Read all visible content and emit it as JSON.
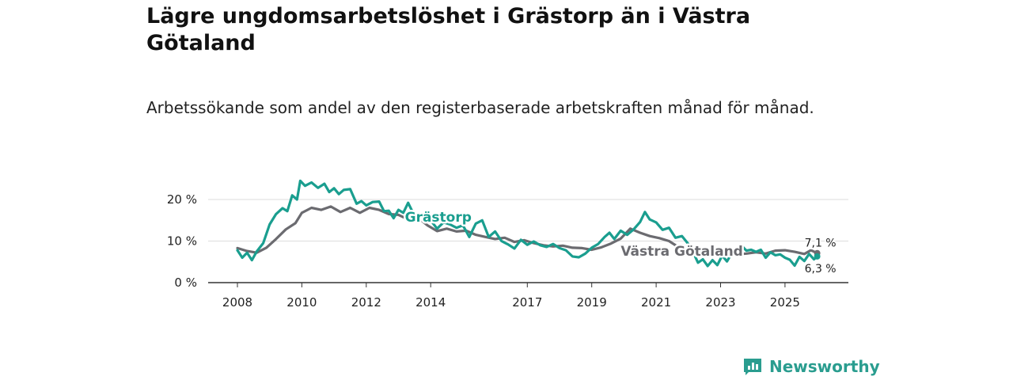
{
  "title": "Lägre ungdomsarbetslöshet i Grästorp än i Västra Götaland",
  "subtitle": "Arbetssökande som andel av den registerbaserade arbetskraften månad för månad.",
  "brand": {
    "name": "Newsworthy",
    "icon": "newsworthy-logo-icon"
  },
  "colors": {
    "grastorp": "#1a9e8f",
    "vastra": "#6b6b70",
    "grid": "#dddddd",
    "axis": "#333333"
  },
  "chart_data": {
    "type": "line",
    "title": "Lägre ungdomsarbetslöshet i Grästorp än i Västra Götaland",
    "xlabel": "",
    "ylabel": "",
    "xlim": [
      2007.9,
      2026.4
    ],
    "ylim": [
      0,
      20
    ],
    "y_ticks": [
      0,
      10,
      20
    ],
    "y_tick_labels": [
      "0 %",
      "10 %",
      "20 %"
    ],
    "x_ticks": [
      2008,
      2010,
      2012,
      2014,
      2017,
      2019,
      2021,
      2023,
      2025
    ],
    "x_tick_labels": [
      "2008",
      "2010",
      "2012",
      "2014",
      "2017",
      "2019",
      "2021",
      "2023",
      "2025"
    ],
    "grid": true,
    "series": [
      {
        "name": "Västra Götaland",
        "end_label": "7,1 %",
        "points": [
          [
            2008.0,
            8.3
          ],
          [
            2008.3,
            7.6
          ],
          [
            2008.6,
            7.2
          ],
          [
            2008.9,
            8.4
          ],
          [
            2009.2,
            10.5
          ],
          [
            2009.5,
            12.8
          ],
          [
            2009.8,
            14.3
          ],
          [
            2010.0,
            16.8
          ],
          [
            2010.3,
            18.0
          ],
          [
            2010.6,
            17.5
          ],
          [
            2010.9,
            18.3
          ],
          [
            2011.2,
            17.0
          ],
          [
            2011.5,
            18.0
          ],
          [
            2011.8,
            16.8
          ],
          [
            2012.1,
            18.0
          ],
          [
            2012.4,
            17.5
          ],
          [
            2012.7,
            16.5
          ],
          [
            2013.0,
            16.3
          ],
          [
            2013.3,
            15.2
          ],
          [
            2013.6,
            15.7
          ],
          [
            2013.9,
            13.8
          ],
          [
            2014.2,
            12.4
          ],
          [
            2014.5,
            13.0
          ],
          [
            2014.8,
            12.3
          ],
          [
            2015.1,
            12.5
          ],
          [
            2015.4,
            11.5
          ],
          [
            2015.7,
            11.0
          ],
          [
            2016.0,
            10.5
          ],
          [
            2016.3,
            10.8
          ],
          [
            2016.6,
            9.8
          ],
          [
            2016.9,
            10.2
          ],
          [
            2017.2,
            9.5
          ],
          [
            2017.5,
            9.0
          ],
          [
            2017.8,
            8.7
          ],
          [
            2018.1,
            8.9
          ],
          [
            2018.4,
            8.4
          ],
          [
            2018.7,
            8.3
          ],
          [
            2019.0,
            7.9
          ],
          [
            2019.3,
            8.5
          ],
          [
            2019.6,
            9.4
          ],
          [
            2019.9,
            10.6
          ],
          [
            2020.2,
            13.0
          ],
          [
            2020.5,
            12.0
          ],
          [
            2020.8,
            11.2
          ],
          [
            2021.1,
            10.7
          ],
          [
            2021.4,
            10.0
          ],
          [
            2021.7,
            8.5
          ],
          [
            2022.0,
            7.4
          ],
          [
            2022.3,
            6.9
          ],
          [
            2022.6,
            7.2
          ],
          [
            2022.9,
            6.6
          ],
          [
            2023.2,
            6.3
          ],
          [
            2023.5,
            6.8
          ],
          [
            2023.8,
            7.0
          ],
          [
            2024.1,
            7.3
          ],
          [
            2024.4,
            7.0
          ],
          [
            2024.7,
            7.7
          ],
          [
            2025.0,
            7.8
          ],
          [
            2025.3,
            7.4
          ],
          [
            2025.6,
            6.9
          ],
          [
            2025.8,
            7.8
          ],
          [
            2026.0,
            7.1
          ]
        ]
      },
      {
        "name": "Grästorp",
        "end_label": "6,3 %",
        "points": [
          [
            2008.0,
            7.8
          ],
          [
            2008.15,
            6.0
          ],
          [
            2008.3,
            7.2
          ],
          [
            2008.45,
            5.4
          ],
          [
            2008.6,
            7.5
          ],
          [
            2008.8,
            9.5
          ],
          [
            2009.0,
            14.0
          ],
          [
            2009.2,
            16.5
          ],
          [
            2009.4,
            17.9
          ],
          [
            2009.55,
            17.2
          ],
          [
            2009.7,
            21.0
          ],
          [
            2009.85,
            20.0
          ],
          [
            2009.95,
            24.5
          ],
          [
            2010.1,
            23.3
          ],
          [
            2010.3,
            24.1
          ],
          [
            2010.5,
            22.8
          ],
          [
            2010.7,
            23.8
          ],
          [
            2010.85,
            21.8
          ],
          [
            2011.0,
            22.7
          ],
          [
            2011.15,
            21.3
          ],
          [
            2011.3,
            22.3
          ],
          [
            2011.5,
            22.5
          ],
          [
            2011.7,
            19.0
          ],
          [
            2011.85,
            19.6
          ],
          [
            2012.0,
            18.6
          ],
          [
            2012.2,
            19.4
          ],
          [
            2012.4,
            19.5
          ],
          [
            2012.55,
            17.2
          ],
          [
            2012.7,
            17.3
          ],
          [
            2012.85,
            15.5
          ],
          [
            2013.0,
            17.5
          ],
          [
            2013.15,
            16.8
          ],
          [
            2013.3,
            19.2
          ],
          [
            2013.5,
            16.0
          ],
          [
            2013.7,
            15.5
          ],
          [
            2013.85,
            17.3
          ],
          [
            2014.0,
            15.0
          ],
          [
            2014.2,
            13.0
          ],
          [
            2014.4,
            14.5
          ],
          [
            2014.6,
            14.0
          ],
          [
            2014.8,
            13.2
          ],
          [
            2015.0,
            13.8
          ],
          [
            2015.2,
            11.0
          ],
          [
            2015.4,
            14.2
          ],
          [
            2015.6,
            15.0
          ],
          [
            2015.8,
            11.0
          ],
          [
            2016.0,
            12.3
          ],
          [
            2016.2,
            10.0
          ],
          [
            2016.4,
            9.2
          ],
          [
            2016.6,
            8.2
          ],
          [
            2016.8,
            10.3
          ],
          [
            2017.0,
            9.1
          ],
          [
            2017.2,
            9.9
          ],
          [
            2017.4,
            9.0
          ],
          [
            2017.6,
            8.6
          ],
          [
            2017.8,
            9.3
          ],
          [
            2018.0,
            8.3
          ],
          [
            2018.2,
            7.8
          ],
          [
            2018.4,
            6.3
          ],
          [
            2018.6,
            6.1
          ],
          [
            2018.8,
            7.0
          ],
          [
            2019.0,
            8.4
          ],
          [
            2019.2,
            9.3
          ],
          [
            2019.4,
            11.0
          ],
          [
            2019.55,
            12.0
          ],
          [
            2019.7,
            10.5
          ],
          [
            2019.9,
            12.5
          ],
          [
            2020.1,
            11.5
          ],
          [
            2020.3,
            12.8
          ],
          [
            2020.5,
            14.6
          ],
          [
            2020.65,
            17.0
          ],
          [
            2020.8,
            15.2
          ],
          [
            2021.0,
            14.5
          ],
          [
            2021.2,
            12.7
          ],
          [
            2021.4,
            13.2
          ],
          [
            2021.6,
            10.8
          ],
          [
            2021.8,
            11.2
          ],
          [
            2022.0,
            9.3
          ],
          [
            2022.15,
            7.3
          ],
          [
            2022.3,
            4.8
          ],
          [
            2022.45,
            5.6
          ],
          [
            2022.6,
            4.0
          ],
          [
            2022.75,
            5.4
          ],
          [
            2022.9,
            4.2
          ],
          [
            2023.05,
            6.5
          ],
          [
            2023.2,
            5.1
          ],
          [
            2023.35,
            7.1
          ],
          [
            2023.5,
            7.6
          ],
          [
            2023.65,
            8.9
          ],
          [
            2023.8,
            7.7
          ],
          [
            2023.95,
            7.9
          ],
          [
            2024.1,
            7.4
          ],
          [
            2024.25,
            7.9
          ],
          [
            2024.4,
            6.0
          ],
          [
            2024.55,
            7.3
          ],
          [
            2024.7,
            6.6
          ],
          [
            2024.85,
            6.8
          ],
          [
            2025.0,
            6.0
          ],
          [
            2025.15,
            5.5
          ],
          [
            2025.3,
            4.1
          ],
          [
            2025.45,
            6.2
          ],
          [
            2025.6,
            5.2
          ],
          [
            2025.75,
            6.9
          ],
          [
            2025.9,
            5.6
          ],
          [
            2026.0,
            6.3
          ]
        ]
      }
    ],
    "series_labels": [
      {
        "text": "Grästorp",
        "x": 2013.2,
        "y": 15.8
      },
      {
        "text": "Västra Götaland",
        "x": 2019.9,
        "y": 7.6
      }
    ]
  }
}
